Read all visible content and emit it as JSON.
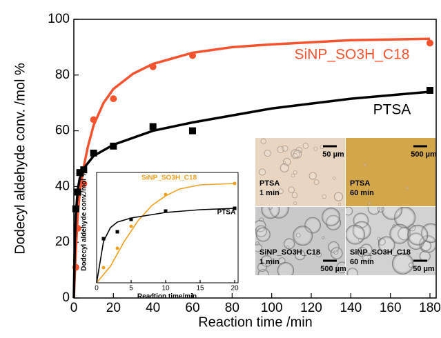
{
  "chart_data": [
    {
      "type": "scatter",
      "xlabel": "Reaction time /min",
      "ylabel": "Dodecyl aldehyde conv. /mol %",
      "xlim": [
        0,
        180
      ],
      "xticks": [
        0,
        20,
        40,
        60,
        80,
        100,
        120,
        140,
        160,
        180
      ],
      "ylim": [
        0,
        100
      ],
      "yticks": [
        0,
        20,
        40,
        60,
        80,
        100
      ],
      "series": [
        {
          "name": "SiNP_SO3H_C18",
          "color": "#f4532f",
          "marker": "circle",
          "x": [
            1,
            2,
            5,
            10,
            20,
            40,
            60,
            180
          ],
          "values": [
            11,
            25,
            41,
            64,
            71.5,
            83,
            87,
            91.5
          ],
          "fit": {
            "x": [
              0,
              1,
              2,
              3,
              5,
              7,
              10,
              15,
              20,
              30,
              40,
              60,
              80,
              100,
              140,
              180
            ],
            "values": [
              0,
              17,
              30,
              38,
              47,
              54,
              62,
              70,
              75,
              80.5,
              84,
              88,
              90,
              91,
              92.5,
              93
            ]
          }
        },
        {
          "name": "PTSA",
          "color": "#000000",
          "marker": "square",
          "x": [
            1,
            2,
            3,
            5,
            10,
            20,
            40,
            60,
            180
          ],
          "values": [
            32,
            38,
            45,
            46,
            52,
            54.5,
            61.5,
            60,
            74.5
          ],
          "fit": {
            "x": [
              0,
              0.5,
              1,
              2,
              3,
              5,
              10,
              20,
              40,
              60,
              100,
              140,
              180
            ],
            "values": [
              0,
              20,
              30,
              39,
              43,
              46.5,
              51,
              55,
              60,
              63,
              68,
              71.5,
              74
            ]
          }
        }
      ]
    },
    {
      "type": "scatter",
      "xlabel": "Reaction time/min",
      "ylabel": "Dodecyl aldehyde conv./mol %",
      "xlim": [
        0,
        20
      ],
      "xticks": [
        0,
        5,
        10,
        15,
        20
      ],
      "ylim": [
        0,
        80
      ],
      "series": [
        {
          "name": "SiNP_SO3H_C18",
          "color": "#f0a020",
          "marker": "circle",
          "x": [
            1,
            3,
            5,
            10,
            20
          ],
          "values": [
            11,
            25,
            41,
            64,
            72
          ],
          "fit": {
            "x": [
              0,
              2,
              4,
              6,
              8,
              10,
              12,
              15,
              20
            ],
            "values": [
              0,
              12,
              30,
              45,
              56,
              63,
              68,
              71,
              72
            ]
          }
        },
        {
          "name": "PTSA",
          "color": "#000000",
          "marker": "square",
          "x": [
            1,
            3,
            5,
            10,
            20
          ],
          "values": [
            32,
            37,
            46,
            52,
            54
          ],
          "fit": {
            "x": [
              0,
              1,
              2,
              3,
              5,
              10,
              15,
              20
            ],
            "values": [
              0,
              30,
              40,
              44,
              47,
              51,
              53,
              54
            ]
          }
        }
      ]
    }
  ],
  "micrographs": {
    "panels": [
      {
        "label": [
          "PTSA",
          "1 min"
        ],
        "scale_bar": "50 µm"
      },
      {
        "label": [
          "PTSA",
          "60 min"
        ],
        "scale_bar": "500 µm"
      },
      {
        "label": [
          "SiNP_SO3H_C18",
          "1 min"
        ],
        "scale_bar": "500 µm"
      },
      {
        "label": [
          "SiNP_SO3H_C18",
          "60 min"
        ],
        "scale_bar": "50 µm"
      }
    ]
  }
}
